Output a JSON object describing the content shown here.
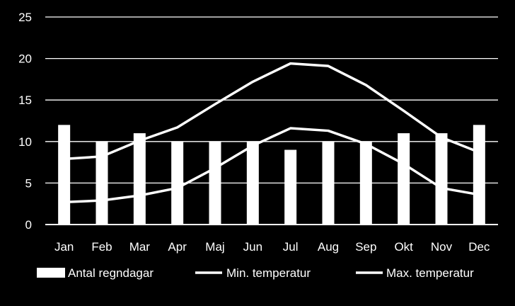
{
  "chart_data": {
    "type": "bar",
    "categories": [
      "Jan",
      "Feb",
      "Mar",
      "Apr",
      "Maj",
      "Jun",
      "Jul",
      "Aug",
      "Sep",
      "Okt",
      "Nov",
      "Dec"
    ],
    "ylim": [
      0,
      25
    ],
    "yticks": [
      0,
      5,
      10,
      15,
      20,
      25
    ],
    "grid": true,
    "legend_position": "bottom",
    "series": [
      {
        "name": "Antal regndagar",
        "type": "bar",
        "color": "#ffffff",
        "values": [
          12,
          10,
          11,
          10,
          10,
          10,
          9,
          10,
          10,
          11,
          11,
          12
        ]
      },
      {
        "name": "Min. temperatur",
        "type": "line",
        "color": "#ffffff",
        "values": [
          2.7,
          2.9,
          3.5,
          4.4,
          6.8,
          9.5,
          11.6,
          11.3,
          9.7,
          7.3,
          4.4,
          3.6
        ]
      },
      {
        "name": "Max. temperatur",
        "type": "line",
        "color": "#ffffff",
        "values": [
          7.9,
          8.2,
          10.1,
          11.7,
          14.5,
          17.2,
          19.4,
          19.1,
          16.8,
          13.7,
          10.5,
          8.7
        ]
      }
    ]
  }
}
